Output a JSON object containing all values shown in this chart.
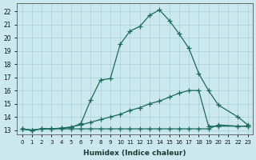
{
  "xlabel": "Humidex (Indice chaleur)",
  "bg_color": "#cce8ef",
  "grid_color": "#aacfda",
  "line_color": "#1a6b5a",
  "xlim": [
    -0.5,
    23.5
  ],
  "ylim": [
    12.7,
    22.6
  ],
  "xticks": [
    0,
    1,
    2,
    3,
    4,
    5,
    6,
    7,
    8,
    9,
    10,
    11,
    12,
    13,
    14,
    15,
    16,
    17,
    18,
    19,
    20,
    21,
    22,
    23
  ],
  "yticks": [
    13,
    14,
    15,
    16,
    17,
    18,
    19,
    20,
    21,
    22
  ],
  "line1_x": [
    0,
    1,
    2,
    3,
    4,
    5,
    6,
    7,
    8,
    9,
    10,
    11,
    12,
    13,
    14,
    15,
    16,
    17,
    18,
    19,
    20,
    22,
    23
  ],
  "line1_y": [
    13.1,
    13.0,
    13.1,
    13.1,
    13.15,
    13.2,
    13.5,
    15.3,
    16.8,
    16.9,
    19.5,
    20.5,
    20.85,
    21.7,
    22.1,
    21.3,
    20.3,
    19.2,
    17.3,
    16.0,
    14.9,
    14.0,
    13.4
  ],
  "line2_x": [
    0,
    1,
    2,
    3,
    4,
    5,
    6,
    7,
    8,
    9,
    10,
    11,
    12,
    13,
    14,
    15,
    16,
    17,
    18,
    19,
    20,
    22,
    23
  ],
  "line2_y": [
    13.1,
    13.0,
    13.1,
    13.1,
    13.15,
    13.25,
    13.4,
    13.6,
    13.8,
    14.0,
    14.2,
    14.5,
    14.7,
    15.0,
    15.2,
    15.5,
    15.8,
    16.0,
    16.0,
    13.3,
    13.3,
    13.3,
    13.3
  ],
  "line3_x": [
    0,
    1,
    2,
    3,
    4,
    5,
    6,
    7,
    8,
    9,
    10,
    11,
    12,
    13,
    14,
    15,
    16,
    17,
    18,
    19,
    20,
    22,
    23
  ],
  "line3_y": [
    13.1,
    13.0,
    13.1,
    13.1,
    13.1,
    13.1,
    13.1,
    13.1,
    13.1,
    13.1,
    13.1,
    13.1,
    13.1,
    13.1,
    13.1,
    13.1,
    13.1,
    13.1,
    13.1,
    13.1,
    13.4,
    13.3,
    13.3
  ]
}
